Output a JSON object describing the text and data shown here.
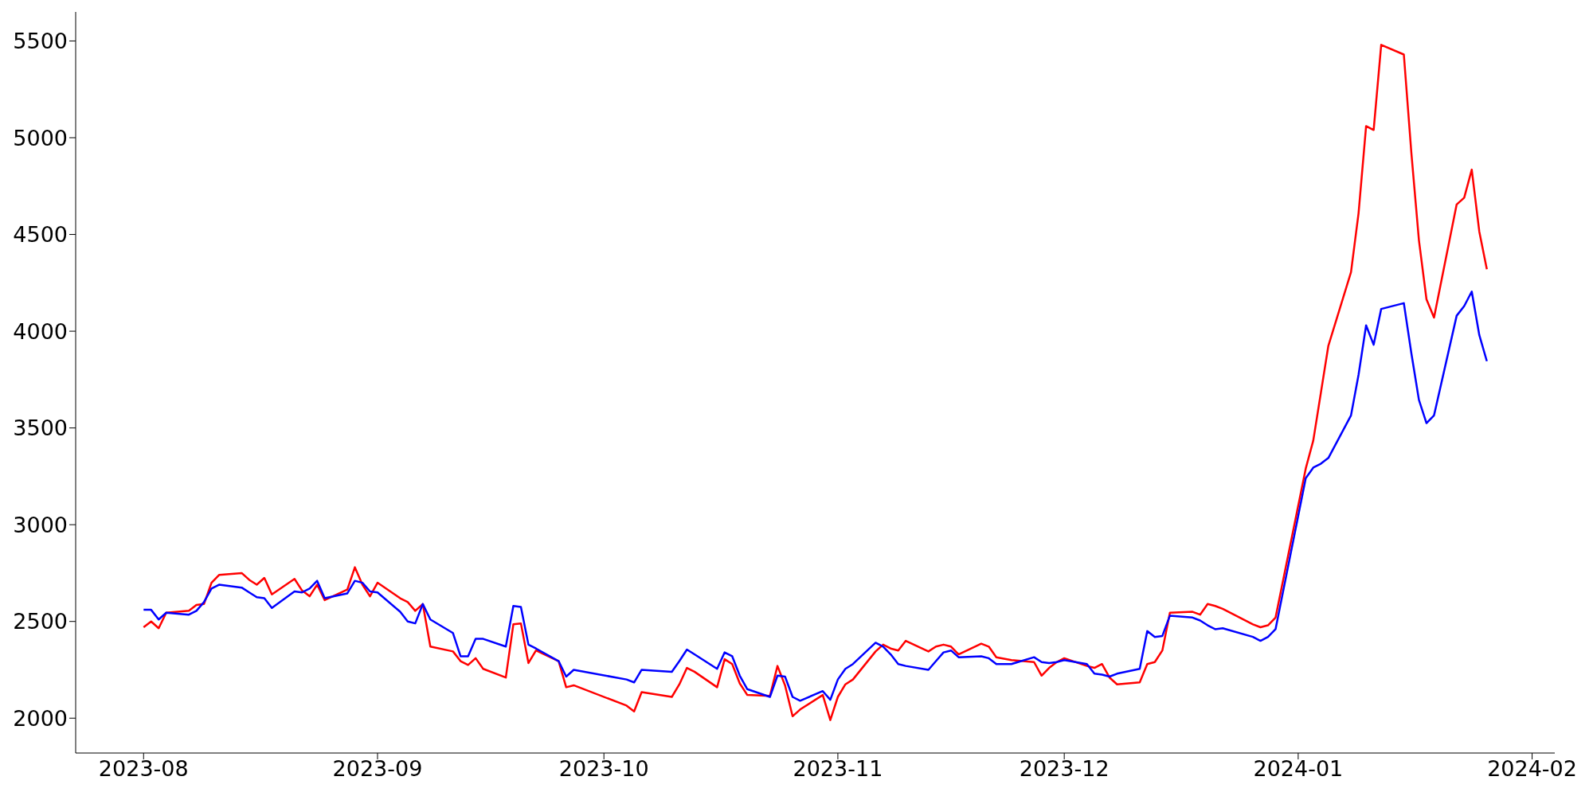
{
  "chart_data": {
    "type": "line",
    "x": [
      "2023-08-01",
      "2023-08-02",
      "2023-08-03",
      "2023-08-04",
      "2023-08-07",
      "2023-08-08",
      "2023-08-09",
      "2023-08-10",
      "2023-08-11",
      "2023-08-14",
      "2023-08-15",
      "2023-08-16",
      "2023-08-17",
      "2023-08-18",
      "2023-08-21",
      "2023-08-22",
      "2023-08-23",
      "2023-08-24",
      "2023-08-25",
      "2023-08-28",
      "2023-08-29",
      "2023-08-30",
      "2023-08-31",
      "2023-09-01",
      "2023-09-04",
      "2023-09-05",
      "2023-09-06",
      "2023-09-07",
      "2023-09-08",
      "2023-09-11",
      "2023-09-12",
      "2023-09-13",
      "2023-09-14",
      "2023-09-15",
      "2023-09-18",
      "2023-09-19",
      "2023-09-20",
      "2023-09-21",
      "2023-09-22",
      "2023-09-25",
      "2023-09-26",
      "2023-09-27",
      "2023-10-04",
      "2023-10-05",
      "2023-10-06",
      "2023-10-10",
      "2023-10-11",
      "2023-10-12",
      "2023-10-13",
      "2023-10-16",
      "2023-10-17",
      "2023-10-18",
      "2023-10-19",
      "2023-10-20",
      "2023-10-23",
      "2023-10-24",
      "2023-10-25",
      "2023-10-26",
      "2023-10-27",
      "2023-10-30",
      "2023-10-31",
      "2023-11-01",
      "2023-11-02",
      "2023-11-03",
      "2023-11-06",
      "2023-11-07",
      "2023-11-08",
      "2023-11-09",
      "2023-11-10",
      "2023-11-13",
      "2023-11-14",
      "2023-11-15",
      "2023-11-16",
      "2023-11-17",
      "2023-11-20",
      "2023-11-21",
      "2023-11-22",
      "2023-11-24",
      "2023-11-27",
      "2023-11-28",
      "2023-11-29",
      "2023-11-30",
      "2023-12-01",
      "2023-12-04",
      "2023-12-05",
      "2023-12-06",
      "2023-12-07",
      "2023-12-08",
      "2023-12-11",
      "2023-12-12",
      "2023-12-13",
      "2023-12-14",
      "2023-12-15",
      "2023-12-18",
      "2023-12-19",
      "2023-12-20",
      "2023-12-21",
      "2023-12-22",
      "2023-12-26",
      "2023-12-27",
      "2023-12-28",
      "2023-12-29",
      "2024-01-02",
      "2024-01-03",
      "2024-01-04",
      "2024-01-05",
      "2024-01-08",
      "2024-01-09",
      "2024-01-10",
      "2024-01-11",
      "2024-01-12",
      "2024-01-15",
      "2024-01-16",
      "2024-01-17",
      "2024-01-18",
      "2024-01-19",
      "2024-01-22",
      "2024-01-23",
      "2024-01-24",
      "2024-01-25",
      "2024-01-26"
    ],
    "series": [
      {
        "color": "#ff0000",
        "values": [
          2470,
          2500,
          2465,
          2545,
          2555,
          2585,
          2590,
          2700,
          2740,
          2750,
          2715,
          2690,
          2725,
          2640,
          2720,
          2660,
          2630,
          2690,
          2610,
          2665,
          2780,
          2690,
          2630,
          2700,
          2620,
          2600,
          2555,
          2590,
          2370,
          2345,
          2295,
          2275,
          2310,
          2255,
          2210,
          2485,
          2490,
          2285,
          2350,
          2295,
          2160,
          2170,
          2065,
          2035,
          2135,
          2110,
          2175,
          2260,
          2240,
          2160,
          2305,
          2280,
          2180,
          2120,
          2115,
          2270,
          2170,
          2010,
          2045,
          2120,
          1990,
          2110,
          2175,
          2200,
          2345,
          2380,
          2360,
          2350,
          2400,
          2345,
          2370,
          2380,
          2370,
          2330,
          2385,
          2370,
          2315,
          2300,
          2290,
          2220,
          2260,
          2290,
          2310,
          2270,
          2260,
          2280,
          2210,
          2175,
          2185,
          2280,
          2290,
          2350,
          2545,
          2550,
          2535,
          2590,
          2580,
          2565,
          2485,
          2470,
          2480,
          2520,
          3290,
          3435,
          3680,
          3925,
          4305,
          4610,
          5060,
          5040,
          5480,
          5430,
          4920,
          4470,
          4165,
          4070,
          4655,
          4690,
          4835,
          4515,
          4320
        ]
      },
      {
        "color": "#0000ff",
        "values": [
          2560,
          2560,
          2510,
          2545,
          2535,
          2555,
          2600,
          2670,
          2690,
          2675,
          2650,
          2625,
          2620,
          2570,
          2655,
          2650,
          2670,
          2710,
          2620,
          2645,
          2710,
          2700,
          2655,
          2650,
          2550,
          2500,
          2490,
          2590,
          2510,
          2440,
          2320,
          2320,
          2410,
          2410,
          2370,
          2580,
          2575,
          2380,
          2360,
          2295,
          2215,
          2250,
          2200,
          2185,
          2250,
          2240,
          2295,
          2355,
          2330,
          2255,
          2340,
          2320,
          2220,
          2150,
          2110,
          2220,
          2215,
          2110,
          2090,
          2140,
          2095,
          2200,
          2255,
          2280,
          2390,
          2370,
          2330,
          2280,
          2270,
          2250,
          2295,
          2340,
          2350,
          2315,
          2320,
          2310,
          2280,
          2280,
          2315,
          2290,
          2285,
          2290,
          2300,
          2280,
          2230,
          2225,
          2215,
          2230,
          2255,
          2450,
          2420,
          2425,
          2530,
          2520,
          2505,
          2480,
          2460,
          2465,
          2420,
          2400,
          2420,
          2460,
          3240,
          3295,
          3315,
          3345,
          3565,
          3775,
          4030,
          3930,
          4115,
          4145,
          3885,
          3645,
          3525,
          3565,
          4080,
          4130,
          4205,
          3980,
          3845
        ]
      }
    ],
    "xlim": [
      "2023-07-23",
      "2024-02-04"
    ],
    "xticks": [
      "2023-08",
      "2023-09",
      "2023-10",
      "2023-11",
      "2023-12",
      "2024-01",
      "2024-02"
    ],
    "ylim": [
      1820,
      5650
    ],
    "yticks": [
      2000,
      2500,
      3000,
      3500,
      4000,
      4500,
      5000,
      5500
    ]
  }
}
